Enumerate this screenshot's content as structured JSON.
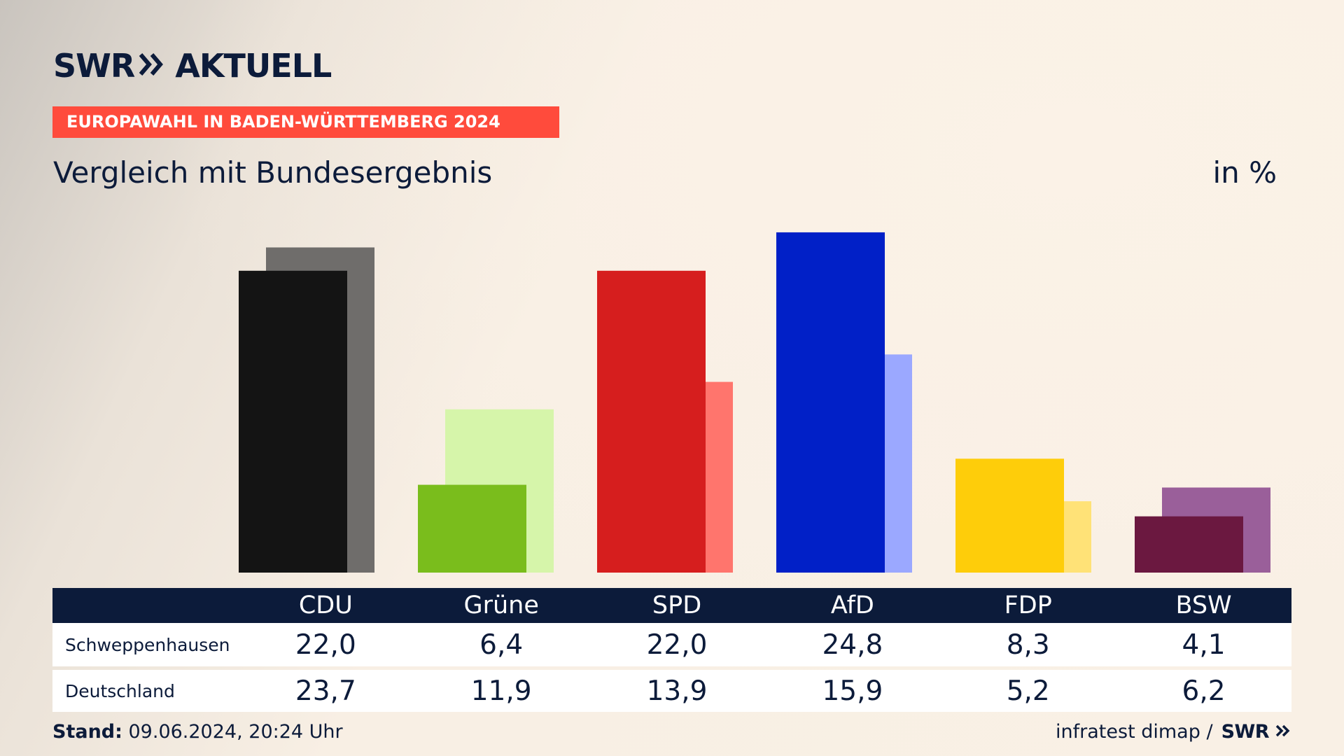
{
  "brand": {
    "logo_text_left": "SWR",
    "logo_text_right": "AKTUELL",
    "logo_chevrons": "»"
  },
  "header": {
    "kicker": "EUROPAWAHL IN BADEN-WÜRTTEMBERG 2024",
    "subtitle": "Vergleich mit Bundesergebnis",
    "unit": "in %"
  },
  "table": {
    "row_labels": [
      "Schweppenhausen",
      "Deutschland"
    ]
  },
  "footer": {
    "stand_label": "Stand:",
    "stand_value": " 09.06.2024, 20:24 Uhr",
    "source": "infratest dimap /",
    "source_brand": "SWR"
  },
  "colors": {
    "kicker_bg": "#ff4b3c",
    "navy": "#0c1b3a"
  },
  "chart_data": {
    "type": "bar",
    "title": "Vergleich mit Bundesergebnis",
    "unit": "in %",
    "categories": [
      "CDU",
      "Grüne",
      "SPD",
      "AfD",
      "FDP",
      "BSW"
    ],
    "series": [
      {
        "name": "Schweppenhausen",
        "values": [
          22.0,
          6.4,
          22.0,
          24.8,
          8.3,
          4.1
        ],
        "labels": [
          "22,0",
          "6,4",
          "22,0",
          "24,8",
          "8,3",
          "4,1"
        ],
        "colors": [
          "#141414",
          "#7abd1c",
          "#d61e1e",
          "#0120c7",
          "#fecd0a",
          "#6b1840"
        ]
      },
      {
        "name": "Deutschland",
        "values": [
          23.7,
          11.9,
          13.9,
          15.9,
          5.2,
          6.2
        ],
        "labels": [
          "23,7",
          "11,9",
          "13,9",
          "15,9",
          "5,2",
          "6,2"
        ],
        "colors": [
          "#6f6d6b",
          "#d6f5aa",
          "#ff756d",
          "#9ba8ff",
          "#ffe277",
          "#9a5f9a"
        ]
      }
    ],
    "ylim": [
      0,
      25
    ],
    "grid": false,
    "legend": "table below chart"
  }
}
